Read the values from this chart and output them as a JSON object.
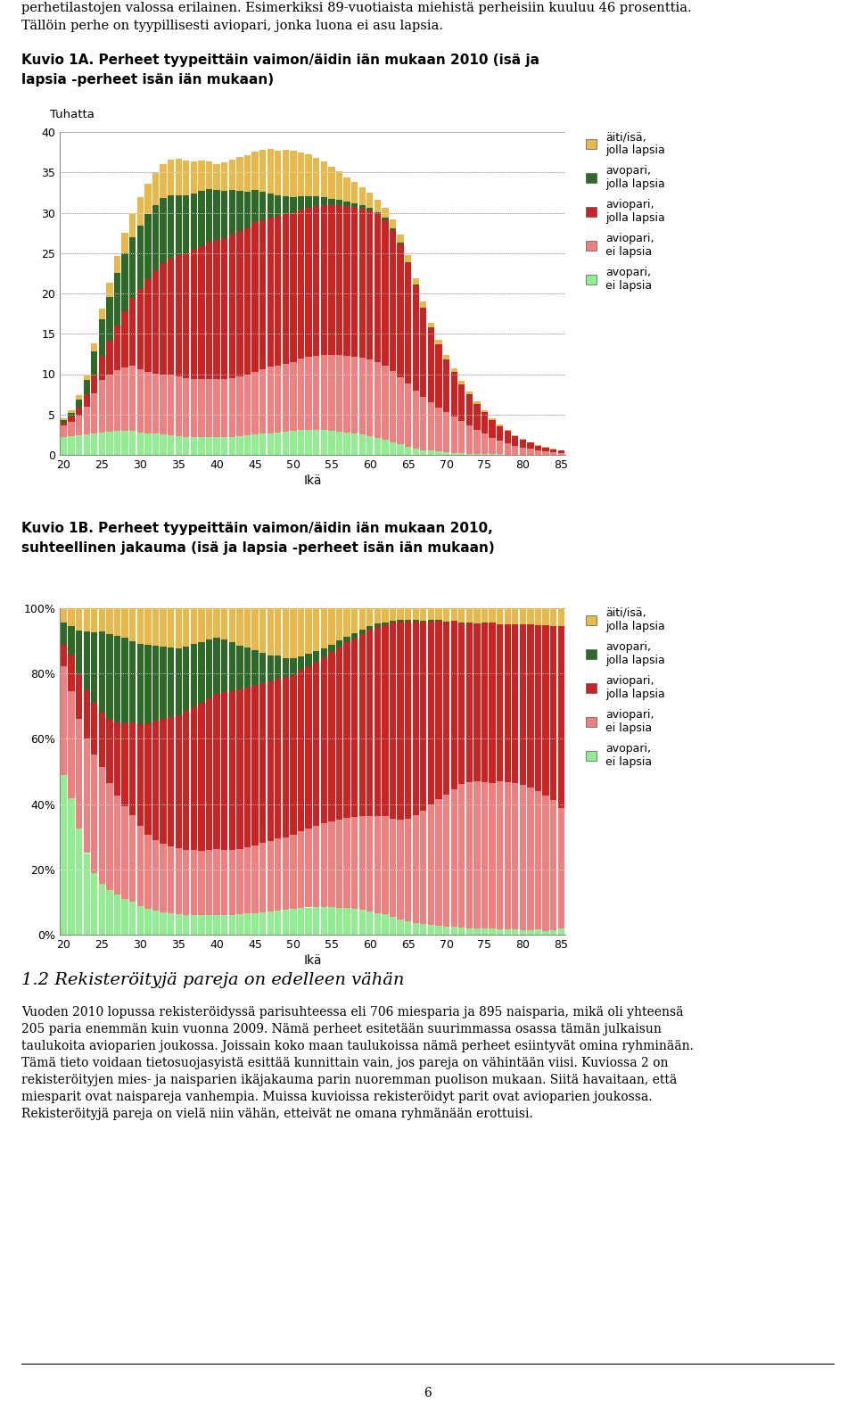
{
  "page_header_line1": "perhetilastojen valossa erilainen. Esimerkiksi 89-vuotiaista miehistä perheisiin kuuluu 46 prosenttia.",
  "page_header_line2": "Tällöin perhe on tyypillisesti aviopari, jonka luona ei asu lapsia.",
  "chart1_title_line1": "Kuvio 1A. Perheet tyypeittäin vaimon/äidin iän mukaan 2010 (isä ja",
  "chart1_title_line2": "lapsia -perheet isän iän mukaan)",
  "chart1_ylabel": "Tuhatta",
  "chart1_xlabel": "Ikä",
  "chart2_title_line1": "Kuvio 1B. Perheet tyypeittäin vaimon/äidin iän mukaan 2010,",
  "chart2_title_line2": "suhteellinen jakauma (isä ja lapsia -perheet isän iän mukaan)",
  "chart2_xlabel": "Ikä",
  "section_title": "1.2 Rekisteröityjä pareja on edelleen vähän",
  "section_text_lines": [
    "Vuoden 2010 lopussa rekisteröidyssä parisuhteessa eli 706 miesparia ja 895 naisparia, mikä oli yhteensä",
    "205 paria enemmän kuin vuonna 2009. Nämä perheet esitetään suurimmassa osassa tämän julkaisun",
    "taulukoita avioparien joukossa. Joissain koko maan taulukoissa nämä perheet esiintyvät omina ryhminään.",
    "Tämä tieto voidaan tietosuojasyistä esittää kunnittain vain, jos pareja on vähintään viisi. Kuviossa 2 on",
    "rekisteröityjen mies- ja naisparien ikäjakauma parin nuoremman puolison mukaan. Siitä havaitaan, että",
    "miesparit ovat naispareja vanhempia. Muissa kuvioissa rekisteröidyt parit ovat avioparien joukossa.",
    "Rekisteröityjä pareja on vielä niin vähän, etteivät ne omana ryhmänään erottuisi."
  ],
  "page_number": "6",
  "legend_labels": [
    "äiti/isä,\njolla lapsia",
    "avopari,\njolla lapsia",
    "aviopari,\njolla lapsia",
    "aviopari,\nei lapsia",
    "avopari,\nei lapsia"
  ],
  "colors_bottom_to_top": [
    "#90ee90",
    "#f08080",
    "#cc2222",
    "#2d6a27",
    "#e8b84b"
  ],
  "ages": [
    20,
    21,
    22,
    23,
    24,
    25,
    26,
    27,
    28,
    29,
    30,
    31,
    32,
    33,
    34,
    35,
    36,
    37,
    38,
    39,
    40,
    41,
    42,
    43,
    44,
    45,
    46,
    47,
    48,
    49,
    50,
    51,
    52,
    53,
    54,
    55,
    56,
    57,
    58,
    59,
    60,
    61,
    62,
    63,
    64,
    65,
    66,
    67,
    68,
    69,
    70,
    71,
    72,
    73,
    74,
    75,
    76,
    77,
    78,
    79,
    80,
    81,
    82,
    83,
    84,
    85
  ],
  "avopari_ei": [
    2.2,
    2.3,
    2.4,
    2.5,
    2.6,
    2.8,
    2.9,
    3.0,
    3.0,
    3.0,
    2.8,
    2.7,
    2.6,
    2.5,
    2.4,
    2.3,
    2.2,
    2.2,
    2.2,
    2.2,
    2.2,
    2.2,
    2.2,
    2.3,
    2.4,
    2.5,
    2.6,
    2.7,
    2.8,
    2.9,
    3.0,
    3.1,
    3.1,
    3.1,
    3.1,
    3.0,
    2.9,
    2.8,
    2.7,
    2.5,
    2.3,
    2.1,
    1.9,
    1.6,
    1.3,
    1.0,
    0.8,
    0.6,
    0.5,
    0.4,
    0.3,
    0.25,
    0.2,
    0.15,
    0.12,
    0.1,
    0.08,
    0.06,
    0.05,
    0.04,
    0.03,
    0.02,
    0.02,
    0.01,
    0.01,
    0.01
  ],
  "aviopari_ei": [
    1.5,
    1.8,
    2.5,
    3.5,
    5.0,
    6.5,
    7.0,
    7.5,
    7.8,
    8.0,
    7.8,
    7.6,
    7.5,
    7.5,
    7.5,
    7.4,
    7.3,
    7.2,
    7.2,
    7.2,
    7.2,
    7.2,
    7.3,
    7.4,
    7.5,
    7.8,
    8.0,
    8.2,
    8.3,
    8.4,
    8.5,
    8.8,
    9.0,
    9.2,
    9.3,
    9.4,
    9.5,
    9.5,
    9.5,
    9.5,
    9.5,
    9.4,
    9.2,
    8.8,
    8.3,
    7.8,
    7.2,
    6.6,
    6.0,
    5.5,
    5.0,
    4.5,
    4.0,
    3.5,
    3.0,
    2.5,
    2.0,
    1.7,
    1.4,
    1.1,
    0.9,
    0.7,
    0.5,
    0.4,
    0.3,
    0.2
  ],
  "aviopari_jolla": [
    0.3,
    0.6,
    1.0,
    1.5,
    2.2,
    3.0,
    4.2,
    5.5,
    7.0,
    8.5,
    10.0,
    11.5,
    12.8,
    13.8,
    14.5,
    15.0,
    15.5,
    16.0,
    16.5,
    17.0,
    17.2,
    17.5,
    17.8,
    18.0,
    18.2,
    18.5,
    18.5,
    18.5,
    18.5,
    18.5,
    18.5,
    18.5,
    18.5,
    18.5,
    18.5,
    18.5,
    18.5,
    18.5,
    18.5,
    18.5,
    18.5,
    18.3,
    18.0,
    17.5,
    16.5,
    15.0,
    13.0,
    11.0,
    9.2,
    7.8,
    6.5,
    5.5,
    4.5,
    3.8,
    3.2,
    2.7,
    2.2,
    1.8,
    1.5,
    1.2,
    1.0,
    0.8,
    0.6,
    0.5,
    0.4,
    0.3
  ],
  "avopari_jolla": [
    0.3,
    0.5,
    1.0,
    1.8,
    3.0,
    4.5,
    5.5,
    6.5,
    7.2,
    7.5,
    7.8,
    8.0,
    8.0,
    8.0,
    7.8,
    7.5,
    7.2,
    7.0,
    6.8,
    6.5,
    6.2,
    5.8,
    5.5,
    5.0,
    4.5,
    4.0,
    3.5,
    3.0,
    2.6,
    2.2,
    1.9,
    1.6,
    1.4,
    1.2,
    1.0,
    0.8,
    0.7,
    0.6,
    0.5,
    0.4,
    0.35,
    0.3,
    0.25,
    0.2,
    0.15,
    0.1,
    0.08,
    0.06,
    0.05,
    0.04,
    0.03,
    0.02,
    0.02,
    0.01,
    0.01,
    0.01,
    0.0,
    0.0,
    0.0,
    0.0,
    0.0,
    0.0,
    0.0,
    0.0,
    0.0,
    0.0
  ],
  "aiti_isa": [
    0.2,
    0.3,
    0.5,
    0.7,
    1.0,
    1.3,
    1.7,
    2.1,
    2.5,
    3.0,
    3.5,
    3.8,
    4.0,
    4.2,
    4.4,
    4.5,
    4.3,
    4.0,
    3.8,
    3.5,
    3.2,
    3.5,
    3.8,
    4.2,
    4.5,
    4.8,
    5.2,
    5.5,
    5.5,
    5.8,
    5.8,
    5.5,
    5.2,
    4.8,
    4.5,
    4.0,
    3.5,
    3.0,
    2.6,
    2.2,
    1.8,
    1.5,
    1.3,
    1.1,
    1.0,
    0.9,
    0.8,
    0.7,
    0.6,
    0.5,
    0.5,
    0.4,
    0.4,
    0.35,
    0.3,
    0.25,
    0.2,
    0.18,
    0.15,
    0.12,
    0.1,
    0.08,
    0.06,
    0.05,
    0.04,
    0.03
  ]
}
